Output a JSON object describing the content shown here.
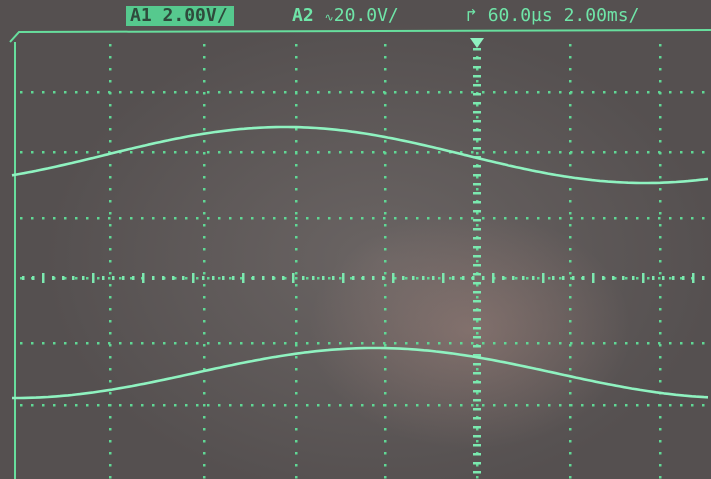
{
  "channel_1": {
    "label": "A1",
    "volts_per_div": "2.00V/",
    "selected": true
  },
  "channel_2": {
    "label": "A2",
    "volts_per_div": "20.0V/"
  },
  "timebase": {
    "delay": "60.0µs",
    "time_per_div": "2.00ms/"
  },
  "colors": {
    "trace": "#8ff2c0",
    "grid": "#60d895",
    "screen": "#5d5756",
    "label_highlight": "#56c98e"
  },
  "icons": {
    "coupling": "ac-coupling-icon",
    "trigger": "trigger-edge-icon",
    "trigger_marker": "trigger-point-marker-icon"
  }
}
